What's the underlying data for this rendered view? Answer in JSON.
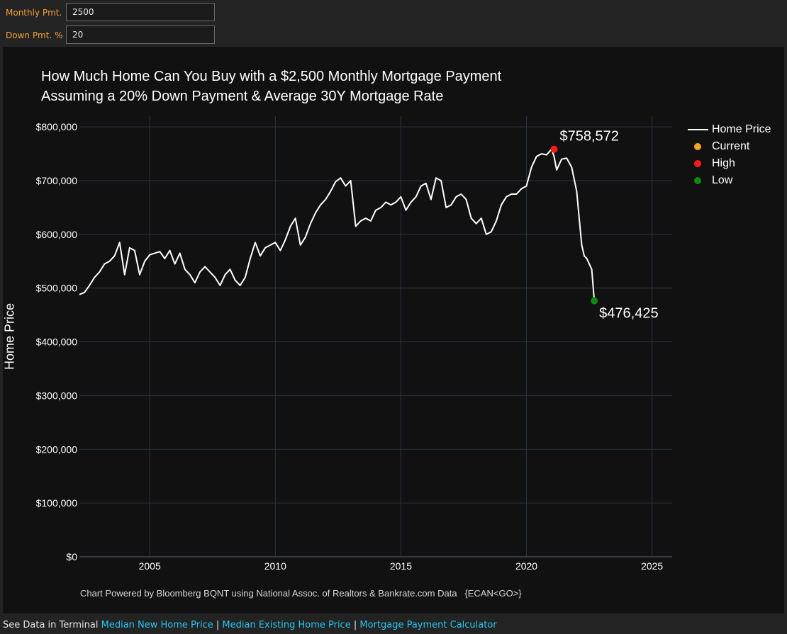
{
  "inputs": {
    "monthly_label": "Monthly Pmt.",
    "monthly_value": "2500",
    "down_label": "Down Pmt. %",
    "down_value": "20"
  },
  "chart_data": {
    "type": "line",
    "title_line1": "How Much Home Can You Buy with a $2,500 Monthly Mortgage Payment",
    "title_line2": "Assuming a 20% Down Payment & Average 30Y Mortgage Rate",
    "xlabel": "",
    "ylabel": "Home Price",
    "xlim": [
      2002.2,
      2025.8
    ],
    "ylim": [
      0,
      820000
    ],
    "x_ticks": [
      2005,
      2010,
      2015,
      2020,
      2025
    ],
    "x_tick_labels": [
      "2005",
      "2010",
      "2015",
      "2020",
      "2025"
    ],
    "y_ticks": [
      0,
      100000,
      200000,
      300000,
      400000,
      500000,
      600000,
      700000,
      800000
    ],
    "y_tick_labels": [
      "$0",
      "$100,000",
      "$200,000",
      "$300,000",
      "$400,000",
      "$500,000",
      "$600,000",
      "$700,000",
      "$800,000"
    ],
    "grid": true,
    "legend_position": "top-right",
    "colors": {
      "line": "#ffffff",
      "current": "#f5a623",
      "high": "#ff1a1a",
      "low": "#0f8a0f"
    },
    "legend": [
      {
        "name": "Home Price",
        "kind": "line",
        "color": "#ffffff"
      },
      {
        "name": "Current",
        "kind": "dot",
        "color": "#f5a623"
      },
      {
        "name": "High",
        "kind": "dot",
        "color": "#ff1a1a"
      },
      {
        "name": "Low",
        "kind": "dot",
        "color": "#0f8a0f"
      }
    ],
    "series": [
      {
        "name": "Home Price",
        "x": [
          2002.2,
          2002.4,
          2002.6,
          2002.8,
          2003.0,
          2003.2,
          2003.4,
          2003.6,
          2003.8,
          2004.0,
          2004.2,
          2004.4,
          2004.6,
          2004.8,
          2005.0,
          2005.2,
          2005.4,
          2005.6,
          2005.8,
          2006.0,
          2006.2,
          2006.4,
          2006.6,
          2006.8,
          2007.0,
          2007.2,
          2007.4,
          2007.6,
          2007.8,
          2008.0,
          2008.2,
          2008.4,
          2008.6,
          2008.8,
          2009.0,
          2009.2,
          2009.4,
          2009.6,
          2009.8,
          2010.0,
          2010.2,
          2010.4,
          2010.6,
          2010.8,
          2011.0,
          2011.2,
          2011.4,
          2011.6,
          2011.8,
          2012.0,
          2012.2,
          2012.4,
          2012.6,
          2012.8,
          2013.0,
          2013.2,
          2013.4,
          2013.6,
          2013.8,
          2014.0,
          2014.2,
          2014.4,
          2014.6,
          2014.8,
          2015.0,
          2015.2,
          2015.4,
          2015.6,
          2015.8,
          2016.0,
          2016.2,
          2016.4,
          2016.6,
          2016.8,
          2017.0,
          2017.2,
          2017.4,
          2017.6,
          2017.8,
          2018.0,
          2018.2,
          2018.4,
          2018.6,
          2018.8,
          2019.0,
          2019.2,
          2019.4,
          2019.6,
          2019.8,
          2020.0,
          2020.2,
          2020.4,
          2020.6,
          2020.8,
          2021.0,
          2021.1,
          2021.2,
          2021.4,
          2021.6,
          2021.8,
          2022.0,
          2022.1,
          2022.2,
          2022.3,
          2022.4,
          2022.5,
          2022.6,
          2022.7
        ],
        "y": [
          488000,
          492000,
          505000,
          520000,
          530000,
          545000,
          550000,
          560000,
          585000,
          525000,
          575000,
          570000,
          525000,
          550000,
          562000,
          565000,
          568000,
          555000,
          570000,
          545000,
          565000,
          535000,
          525000,
          510000,
          530000,
          540000,
          530000,
          520000,
          505000,
          525000,
          535000,
          515000,
          505000,
          520000,
          555000,
          585000,
          560000,
          575000,
          580000,
          585000,
          570000,
          590000,
          615000,
          630000,
          580000,
          595000,
          620000,
          640000,
          655000,
          665000,
          680000,
          698000,
          705000,
          690000,
          700000,
          615000,
          625000,
          630000,
          625000,
          645000,
          650000,
          660000,
          655000,
          660000,
          670000,
          645000,
          660000,
          670000,
          690000,
          695000,
          665000,
          705000,
          700000,
          650000,
          655000,
          670000,
          675000,
          665000,
          630000,
          620000,
          630000,
          600000,
          605000,
          625000,
          655000,
          670000,
          675000,
          675000,
          685000,
          690000,
          725000,
          745000,
          750000,
          748000,
          758572,
          745000,
          720000,
          740000,
          742000,
          725000,
          680000,
          630000,
          580000,
          560000,
          555000,
          545000,
          535000,
          476425
        ]
      }
    ],
    "high": {
      "x": 2021.1,
      "y": 758572,
      "label": "$758,572"
    },
    "low": {
      "x": 2022.7,
      "y": 476425,
      "label": "$476,425"
    },
    "footnote": "Chart Powered by Bloomberg BQNT using National Assoc. of Realtors & Bankrate.com Data   {ECAN<GO>}"
  },
  "bottom": {
    "prefix": "See Data in Terminal",
    "link1": "Median New Home Price",
    "sep1": " | ",
    "link2": "Median Existing Home Price",
    "sep2": " | ",
    "link3": "Mortgage Payment Calculator"
  }
}
